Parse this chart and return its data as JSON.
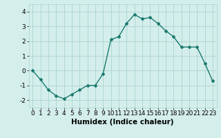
{
  "x": [
    0,
    1,
    2,
    3,
    4,
    5,
    6,
    7,
    8,
    9,
    10,
    11,
    12,
    13,
    14,
    15,
    16,
    17,
    18,
    19,
    20,
    21,
    22,
    23
  ],
  "y": [
    0.0,
    -0.6,
    -1.3,
    -1.7,
    -1.9,
    -1.6,
    -1.3,
    -1.0,
    -1.0,
    -0.2,
    2.1,
    2.3,
    3.2,
    3.8,
    3.5,
    3.6,
    3.2,
    2.7,
    2.3,
    1.6,
    1.6,
    1.6,
    0.5,
    -0.7
  ],
  "line_color": "#1a7a6e",
  "marker": "D",
  "marker_size": 2,
  "bg_color": "#d4eeeb",
  "grid_color": "#aad4cf",
  "xlabel": "Humidex (Indice chaleur)",
  "ylim": [
    -2.5,
    4.5
  ],
  "xlim": [
    -0.5,
    23.5
  ],
  "yticks": [
    -2,
    -1,
    0,
    1,
    2,
    3,
    4
  ],
  "xticks": [
    0,
    1,
    2,
    3,
    4,
    5,
    6,
    7,
    8,
    9,
    10,
    11,
    12,
    13,
    14,
    15,
    16,
    17,
    18,
    19,
    20,
    21,
    22,
    23
  ],
  "tick_fontsize": 6.5,
  "xlabel_fontsize": 7.5,
  "linewidth": 1.0
}
